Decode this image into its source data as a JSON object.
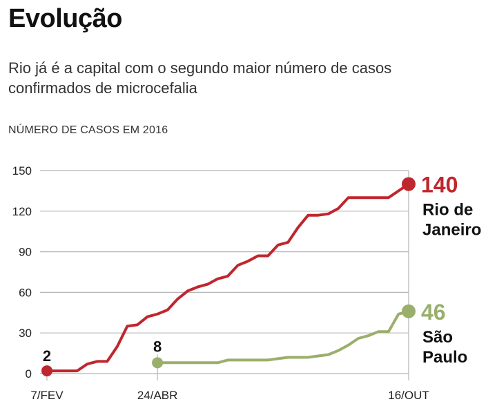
{
  "header": {
    "title": "Evolução",
    "subtitle": "Rio já é a capital com o segundo maior número de casos confirmados de microcefalia",
    "ylabel": "NÚMERO DE CASOS EM 2016"
  },
  "colors": {
    "rio": "#c0262d",
    "sp": "#9aaf6b",
    "grid": "#b5b5b5"
  },
  "chart_data": {
    "type": "line",
    "title": "",
    "xlabel": "",
    "ylabel": "NÚMERO DE CASOS EM 2016",
    "ylim": [
      0,
      150
    ],
    "xlim": [
      0,
      252
    ],
    "y_ticks": [
      "0",
      "30",
      "60",
      "90",
      "120",
      "150"
    ],
    "x_tick_labels": [
      {
        "x": 0,
        "label": "7/FEV"
      },
      {
        "x": 77,
        "label": "24/ABR"
      },
      {
        "x": 252,
        "label": "16/OUT"
      }
    ],
    "grid": true,
    "series": [
      {
        "name": "Rio de Janeiro",
        "color": "#c0262d",
        "start_label": "2",
        "end_label": "140",
        "points": [
          [
            0,
            2
          ],
          [
            7,
            2
          ],
          [
            21,
            2
          ],
          [
            28,
            7
          ],
          [
            35,
            9
          ],
          [
            42,
            9
          ],
          [
            49,
            20
          ],
          [
            56,
            35
          ],
          [
            63,
            36
          ],
          [
            70,
            42
          ],
          [
            77,
            44
          ],
          [
            84,
            47
          ],
          [
            91,
            55
          ],
          [
            98,
            61
          ],
          [
            105,
            64
          ],
          [
            112,
            66
          ],
          [
            119,
            70
          ],
          [
            126,
            72
          ],
          [
            133,
            80
          ],
          [
            140,
            83
          ],
          [
            147,
            87
          ],
          [
            154,
            87
          ],
          [
            161,
            95
          ],
          [
            168,
            97
          ],
          [
            175,
            108
          ],
          [
            182,
            117
          ],
          [
            189,
            117
          ],
          [
            196,
            118
          ],
          [
            203,
            122
          ],
          [
            210,
            130
          ],
          [
            217,
            130
          ],
          [
            224,
            130
          ],
          [
            231,
            130
          ],
          [
            238,
            130
          ],
          [
            245,
            135
          ],
          [
            252,
            140
          ]
        ]
      },
      {
        "name": "São Paulo",
        "color": "#9aaf6b",
        "start_label": "8",
        "end_label": "46",
        "points": [
          [
            77,
            8
          ],
          [
            84,
            8
          ],
          [
            105,
            8
          ],
          [
            112,
            8
          ],
          [
            119,
            8
          ],
          [
            126,
            10
          ],
          [
            147,
            10
          ],
          [
            154,
            10
          ],
          [
            161,
            11
          ],
          [
            168,
            12
          ],
          [
            175,
            12
          ],
          [
            182,
            12
          ],
          [
            189,
            13
          ],
          [
            196,
            14
          ],
          [
            203,
            17
          ],
          [
            210,
            21
          ],
          [
            217,
            26
          ],
          [
            224,
            28
          ],
          [
            231,
            31
          ],
          [
            238,
            31
          ],
          [
            245,
            44
          ],
          [
            252,
            46
          ]
        ]
      }
    ]
  },
  "legend_labels": {
    "rio_line1": "Rio de",
    "rio_line2": "Janeiro",
    "sp_line1": "São",
    "sp_line2": "Paulo"
  }
}
